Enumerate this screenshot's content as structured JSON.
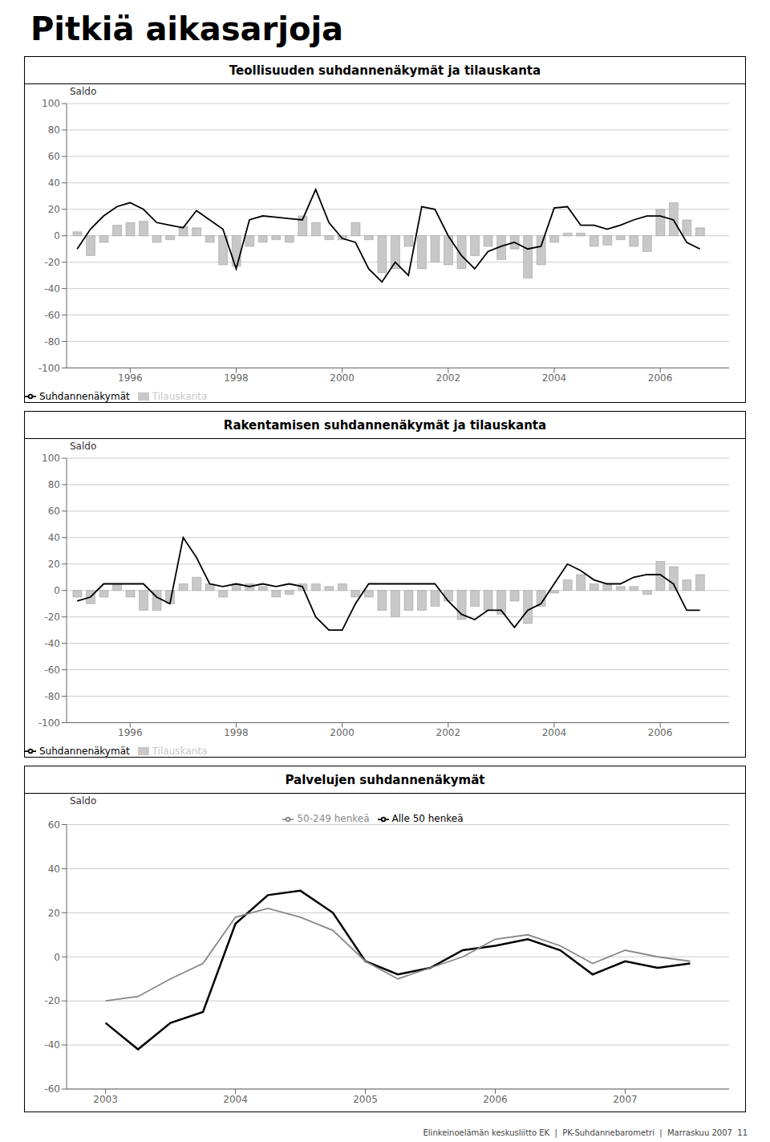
{
  "title": "Pitkiä aikasarjoja",
  "annotations": [
    "Elinkeinoelämän keskusliitto EK  |  PK-Suhdannebarometri  |  Marraskuu 2007  11"
  ],
  "chart_data": [
    {
      "type": "bar",
      "title": "Teollisuuden suhdannenäkymät ja tilauskanta",
      "ylabel": "Saldo",
      "x": [
        1995.0,
        1995.25,
        1995.5,
        1995.75,
        1996.0,
        1996.25,
        1996.5,
        1996.75,
        1997.0,
        1997.25,
        1997.5,
        1997.75,
        1998.0,
        1998.25,
        1998.5,
        1998.75,
        1999.0,
        1999.25,
        1999.5,
        1999.75,
        2000.0,
        2000.25,
        2000.5,
        2000.75,
        2001.0,
        2001.25,
        2001.5,
        2001.75,
        2002.0,
        2002.25,
        2002.5,
        2002.75,
        2003.0,
        2003.25,
        2003.5,
        2003.75,
        2004.0,
        2004.25,
        2004.5,
        2004.75,
        2005.0,
        2005.25,
        2005.5,
        2005.75,
        2006.0,
        2006.25,
        2006.5,
        2006.75
      ],
      "series": [
        {
          "name": "Tilauskanta",
          "type": "bar",
          "color": "#c8c8c8",
          "values": [
            3,
            -15,
            -5,
            8,
            10,
            11,
            -5,
            -3,
            7,
            6,
            -5,
            -22,
            -23,
            -8,
            -5,
            -3,
            -5,
            15,
            10,
            -3,
            -3,
            10,
            -3,
            -28,
            -25,
            -8,
            -25,
            -20,
            -22,
            -25,
            -15,
            -8,
            -18,
            -10,
            -32,
            -22,
            -5,
            2,
            2,
            -8,
            -7,
            -3,
            -8,
            -12,
            20,
            25,
            12,
            6
          ]
        },
        {
          "name": "Suhdannenäkymät",
          "type": "line",
          "color": "#000000",
          "values": [
            -10,
            5,
            15,
            22,
            25,
            20,
            10,
            8,
            6,
            19,
            12,
            5,
            -25,
            12,
            15,
            14,
            13,
            12,
            35,
            10,
            -2,
            -5,
            -25,
            -35,
            -20,
            -30,
            22,
            20,
            0,
            -15,
            -25,
            -12,
            -8,
            -5,
            -10,
            -8,
            21,
            22,
            8,
            8,
            5,
            8,
            12,
            15,
            15,
            12,
            -5,
            -10
          ]
        }
      ],
      "xlim": [
        1994.8,
        2007.3
      ],
      "xticks": [
        1996,
        1998,
        2000,
        2002,
        2004,
        2006
      ],
      "ylim": [
        -100,
        100
      ],
      "yticks": [
        -100,
        -80,
        -60,
        -40,
        -20,
        0,
        20,
        40,
        60,
        80,
        100
      ],
      "grid": true,
      "legend": "lower left"
    },
    {
      "type": "bar",
      "title": "Rakentamisen suhdannenäkymät ja tilauskanta",
      "ylabel": "Saldo",
      "x": [
        1995.0,
        1995.25,
        1995.5,
        1995.75,
        1996.0,
        1996.25,
        1996.5,
        1996.75,
        1997.0,
        1997.25,
        1997.5,
        1997.75,
        1998.0,
        1998.25,
        1998.5,
        1998.75,
        1999.0,
        1999.25,
        1999.5,
        1999.75,
        2000.0,
        2000.25,
        2000.5,
        2000.75,
        2001.0,
        2001.25,
        2001.5,
        2001.75,
        2002.0,
        2002.25,
        2002.5,
        2002.75,
        2003.0,
        2003.25,
        2003.5,
        2003.75,
        2004.0,
        2004.25,
        2004.5,
        2004.75,
        2005.0,
        2005.25,
        2005.5,
        2005.75,
        2006.0,
        2006.25,
        2006.5,
        2006.75
      ],
      "series": [
        {
          "name": "Tilauskanta",
          "type": "bar",
          "color": "#c8c8c8",
          "values": [
            -5,
            -10,
            -5,
            5,
            -5,
            -15,
            -15,
            -10,
            5,
            10,
            5,
            -5,
            5,
            5,
            3,
            -5,
            -3,
            5,
            5,
            3,
            5,
            -5,
            -5,
            -15,
            -20,
            -15,
            -15,
            -12,
            -8,
            -22,
            -12,
            -15,
            -18,
            -8,
            -25,
            -12,
            -2,
            8,
            12,
            5,
            5,
            3,
            3,
            -3,
            22,
            18,
            8,
            12
          ]
        },
        {
          "name": "Suhdannenäkymät",
          "type": "line",
          "color": "#000000",
          "values": [
            -8,
            -5,
            5,
            5,
            5,
            5,
            -5,
            -10,
            40,
            25,
            5,
            3,
            5,
            3,
            5,
            3,
            5,
            3,
            -20,
            -30,
            -30,
            -10,
            5,
            5,
            5,
            5,
            5,
            5,
            -8,
            -18,
            -22,
            -15,
            -15,
            -28,
            -15,
            -10,
            5,
            20,
            15,
            8,
            5,
            5,
            10,
            12,
            12,
            5,
            -15,
            -15
          ]
        }
      ],
      "xlim": [
        1994.8,
        2007.3
      ],
      "xticks": [
        1996,
        1998,
        2000,
        2002,
        2004,
        2006
      ],
      "ylim": [
        -100,
        100
      ],
      "yticks": [
        -100,
        -80,
        -60,
        -40,
        -20,
        0,
        20,
        40,
        60,
        80,
        100
      ],
      "grid": true,
      "legend": "lower left"
    },
    {
      "type": "line",
      "title": "Palvelujen suhdannenäkymät",
      "ylabel": "Saldo",
      "x": [
        2003.0,
        2003.25,
        2003.5,
        2003.75,
        2004.0,
        2004.25,
        2004.5,
        2004.75,
        2005.0,
        2005.25,
        2005.5,
        2005.75,
        2006.0,
        2006.25,
        2006.5,
        2006.75,
        2007.0,
        2007.25,
        2007.5
      ],
      "series": [
        {
          "name": "Alle 50 henkeä",
          "type": "line",
          "color": "#000000",
          "values": [
            -30,
            -42,
            -30,
            -25,
            15,
            28,
            30,
            20,
            -2,
            -8,
            -5,
            3,
            5,
            8,
            3,
            -8,
            -2,
            -5,
            -3
          ]
        },
        {
          "name": "50-249 henkeä",
          "type": "line",
          "color": "#888888",
          "values": [
            -20,
            -18,
            -10,
            -3,
            18,
            22,
            18,
            12,
            -2,
            -10,
            -5,
            0,
            8,
            10,
            5,
            -3,
            3,
            0,
            -2
          ]
        }
      ],
      "xlim": [
        2002.7,
        2007.8
      ],
      "xticks": [
        2003,
        2004,
        2005,
        2006,
        2007
      ],
      "ylim": [
        -60,
        60
      ],
      "yticks": [
        -60,
        -40,
        -20,
        0,
        20,
        40,
        60
      ],
      "grid": true,
      "legend": "upper center"
    }
  ]
}
